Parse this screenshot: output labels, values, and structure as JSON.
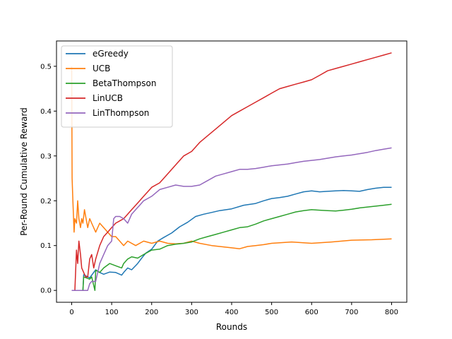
{
  "chart_data": {
    "type": "line",
    "xlabel": "Rounds",
    "ylabel": "Per-Round Cumulative Reward",
    "xlim": [
      -38,
      838
    ],
    "ylim": [
      -0.0265,
      0.5565
    ],
    "x_ticks": [
      0,
      100,
      200,
      300,
      400,
      500,
      600,
      700,
      800
    ],
    "y_ticks": [
      0.0,
      0.1,
      0.2,
      0.3,
      0.4,
      0.5
    ],
    "x_tick_labels": [
      "0",
      "100",
      "200",
      "300",
      "400",
      "500",
      "600",
      "700",
      "800"
    ],
    "y_tick_labels": [
      "0.0",
      "0.1",
      "0.2",
      "0.3",
      "0.4",
      "0.5"
    ],
    "grid": false,
    "legend_position": "upper-left",
    "series": [
      {
        "name": "eGreedy",
        "color": "#1f77b4",
        "x": [
          0,
          28,
          30,
          45,
          60,
          70,
          80,
          95,
          110,
          125,
          130,
          140,
          150,
          165,
          175,
          185,
          200,
          215,
          230,
          250,
          270,
          290,
          310,
          330,
          350,
          370,
          400,
          430,
          460,
          480,
          500,
          520,
          540,
          560,
          580,
          600,
          620,
          640,
          660,
          680,
          700,
          720,
          740,
          760,
          780,
          800
        ],
        "values": [
          0.0,
          0.0,
          0.035,
          0.028,
          0.046,
          0.04,
          0.036,
          0.041,
          0.04,
          0.034,
          0.04,
          0.05,
          0.046,
          0.06,
          0.072,
          0.083,
          0.092,
          0.11,
          0.118,
          0.128,
          0.142,
          0.152,
          0.165,
          0.17,
          0.174,
          0.178,
          0.182,
          0.19,
          0.194,
          0.2,
          0.205,
          0.207,
          0.21,
          0.215,
          0.22,
          0.222,
          0.22,
          0.221,
          0.222,
          0.223,
          0.222,
          0.221,
          0.225,
          0.228,
          0.23,
          0.23
        ]
      },
      {
        "name": "UCB",
        "color": "#ff7f0e",
        "x": [
          0,
          1,
          3,
          6,
          8,
          12,
          15,
          18,
          22,
          25,
          28,
          32,
          36,
          40,
          45,
          50,
          60,
          70,
          80,
          90,
          100,
          110,
          120,
          130,
          140,
          160,
          180,
          200,
          220,
          240,
          260,
          280,
          300,
          320,
          350,
          380,
          400,
          420,
          440,
          460,
          480,
          500,
          550,
          600,
          650,
          700,
          750,
          800
        ],
        "values": [
          0.5,
          0.25,
          0.2,
          0.13,
          0.16,
          0.15,
          0.2,
          0.16,
          0.14,
          0.16,
          0.15,
          0.18,
          0.16,
          0.14,
          0.16,
          0.15,
          0.13,
          0.15,
          0.14,
          0.13,
          0.12,
          0.12,
          0.11,
          0.1,
          0.11,
          0.1,
          0.11,
          0.105,
          0.11,
          0.105,
          0.104,
          0.105,
          0.11,
          0.105,
          0.1,
          0.097,
          0.095,
          0.093,
          0.098,
          0.1,
          0.102,
          0.105,
          0.108,
          0.105,
          0.108,
          0.112,
          0.113,
          0.115
        ]
      },
      {
        "name": "BetaThompson",
        "color": "#2ca02c",
        "x": [
          0,
          28,
          30,
          45,
          50,
          58,
          60,
          70,
          80,
          95,
          110,
          125,
          130,
          140,
          150,
          165,
          180,
          200,
          220,
          240,
          260,
          280,
          300,
          320,
          340,
          360,
          380,
          400,
          420,
          440,
          460,
          480,
          500,
          520,
          540,
          560,
          580,
          600,
          620,
          640,
          660,
          680,
          700,
          720,
          740,
          760,
          780,
          800
        ],
        "values": [
          0.0,
          0.0,
          0.03,
          0.025,
          0.03,
          0.0,
          0.045,
          0.04,
          0.05,
          0.06,
          0.055,
          0.05,
          0.06,
          0.07,
          0.075,
          0.072,
          0.08,
          0.09,
          0.092,
          0.1,
          0.103,
          0.105,
          0.108,
          0.115,
          0.12,
          0.125,
          0.13,
          0.135,
          0.14,
          0.142,
          0.148,
          0.155,
          0.16,
          0.165,
          0.17,
          0.175,
          0.178,
          0.18,
          0.179,
          0.178,
          0.177,
          0.179,
          0.181,
          0.184,
          0.186,
          0.188,
          0.19,
          0.192
        ]
      },
      {
        "name": "LinUCB",
        "color": "#d62728",
        "x": [
          0,
          8,
          12,
          15,
          18,
          22,
          25,
          30,
          35,
          40,
          45,
          50,
          55,
          60,
          70,
          80,
          90,
          100,
          110,
          120,
          130,
          140,
          150,
          160,
          170,
          180,
          190,
          200,
          220,
          240,
          260,
          280,
          300,
          320,
          340,
          360,
          380,
          400,
          420,
          440,
          460,
          480,
          500,
          520,
          540,
          560,
          580,
          600,
          620,
          640,
          660,
          680,
          700,
          720,
          740,
          760,
          780,
          800
        ],
        "values": [
          0.0,
          0.0,
          0.09,
          0.06,
          0.11,
          0.08,
          0.05,
          0.04,
          0.03,
          0.03,
          0.07,
          0.08,
          0.05,
          0.07,
          0.1,
          0.12,
          0.13,
          0.14,
          0.15,
          0.155,
          0.16,
          0.17,
          0.18,
          0.19,
          0.2,
          0.21,
          0.22,
          0.23,
          0.24,
          0.26,
          0.28,
          0.3,
          0.31,
          0.33,
          0.345,
          0.36,
          0.375,
          0.39,
          0.4,
          0.41,
          0.42,
          0.43,
          0.44,
          0.45,
          0.455,
          0.46,
          0.465,
          0.47,
          0.48,
          0.49,
          0.495,
          0.5,
          0.505,
          0.51,
          0.515,
          0.52,
          0.525,
          0.53
        ]
      },
      {
        "name": "LinThompson",
        "color": "#9467bd",
        "x": [
          0,
          10,
          20,
          30,
          40,
          45,
          50,
          60,
          70,
          80,
          90,
          100,
          105,
          110,
          120,
          130,
          140,
          150,
          160,
          170,
          180,
          190,
          200,
          220,
          240,
          260,
          280,
          300,
          320,
          340,
          360,
          380,
          400,
          420,
          440,
          460,
          480,
          500,
          520,
          540,
          560,
          580,
          600,
          620,
          640,
          660,
          680,
          700,
          720,
          740,
          760,
          780,
          800
        ],
        "values": [
          0.0,
          0.0,
          0.0,
          0.0,
          0.0,
          0.015,
          0.02,
          0.02,
          0.06,
          0.08,
          0.1,
          0.11,
          0.16,
          0.165,
          0.165,
          0.16,
          0.15,
          0.17,
          0.18,
          0.19,
          0.2,
          0.205,
          0.21,
          0.225,
          0.23,
          0.235,
          0.232,
          0.232,
          0.235,
          0.245,
          0.255,
          0.26,
          0.265,
          0.27,
          0.27,
          0.272,
          0.275,
          0.278,
          0.28,
          0.282,
          0.285,
          0.288,
          0.29,
          0.292,
          0.295,
          0.298,
          0.3,
          0.302,
          0.305,
          0.308,
          0.312,
          0.315,
          0.318
        ]
      }
    ]
  }
}
